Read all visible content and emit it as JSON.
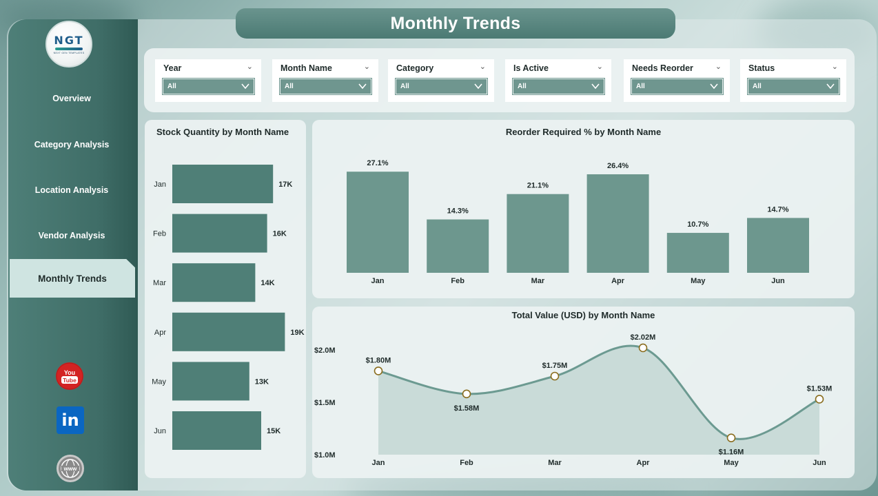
{
  "header": {
    "title": "Monthly Trends"
  },
  "logo": {
    "mark": "NGT",
    "subtitle": "NEXT GEN TEMPLATES"
  },
  "sidebar": {
    "items": [
      {
        "label": "Overview",
        "active": false
      },
      {
        "label": "Category Analysis",
        "active": false
      },
      {
        "label": "Location Analysis",
        "active": false
      },
      {
        "label": "Vendor Analysis",
        "active": false
      },
      {
        "label": "Monthly Trends",
        "active": true
      }
    ],
    "social": [
      {
        "name": "youtube-icon",
        "text": "You Tube",
        "color": "#d32323"
      },
      {
        "name": "linkedin-icon",
        "text": "in",
        "color": "#0a66c2"
      },
      {
        "name": "website-icon",
        "text": "www",
        "color": "#7d7d7d"
      }
    ]
  },
  "filters": [
    {
      "label": "Year",
      "value": "All"
    },
    {
      "label": "Month Name",
      "value": "All"
    },
    {
      "label": "Category",
      "value": "All"
    },
    {
      "label": "Is Active",
      "value": "All"
    },
    {
      "label": "Needs Reorder",
      "value": "All"
    },
    {
      "label": "Status",
      "value": "All"
    }
  ],
  "colors": {
    "accent": "#4f7f77",
    "bar_light": "#6d978e",
    "line": "#6c9a91",
    "area": "#c3d7d3",
    "sidebar": "#3f6d67"
  },
  "chart_data": [
    {
      "type": "bar",
      "orientation": "horizontal",
      "title": "Stock Quantity by Month Name",
      "categories": [
        "Jan",
        "Feb",
        "Mar",
        "Apr",
        "May",
        "Jun"
      ],
      "values": [
        17000,
        16000,
        14000,
        19000,
        13000,
        15000
      ],
      "labels": [
        "17K",
        "16K",
        "14K",
        "19K",
        "13K",
        "15K"
      ],
      "xlim": [
        0,
        20000
      ]
    },
    {
      "type": "bar",
      "title": "Reorder Required % by Month Name",
      "categories": [
        "Jan",
        "Feb",
        "Mar",
        "Apr",
        "May",
        "Jun"
      ],
      "values": [
        27.1,
        14.3,
        21.1,
        26.4,
        10.7,
        14.7
      ],
      "labels": [
        "27.1%",
        "14.3%",
        "21.1%",
        "26.4%",
        "10.7%",
        "14.7%"
      ],
      "ylim": [
        0,
        30
      ]
    },
    {
      "type": "area",
      "title": "Total Value (USD) by Month Name",
      "categories": [
        "Jan",
        "Feb",
        "Mar",
        "Apr",
        "May",
        "Jun"
      ],
      "values": [
        1.8,
        1.58,
        1.75,
        2.02,
        1.16,
        1.53
      ],
      "labels": [
        "$1.80M",
        "$1.58M",
        "$1.75M",
        "$2.02M",
        "$1.16M",
        "$1.53M"
      ],
      "unit": "USD millions",
      "ylim": [
        1.0,
        2.0
      ],
      "yticks": [
        "$2.0M",
        "$1.5M",
        "$1.0M"
      ],
      "label_positions": [
        "above",
        "below",
        "above",
        "above",
        "below",
        "above"
      ]
    }
  ]
}
